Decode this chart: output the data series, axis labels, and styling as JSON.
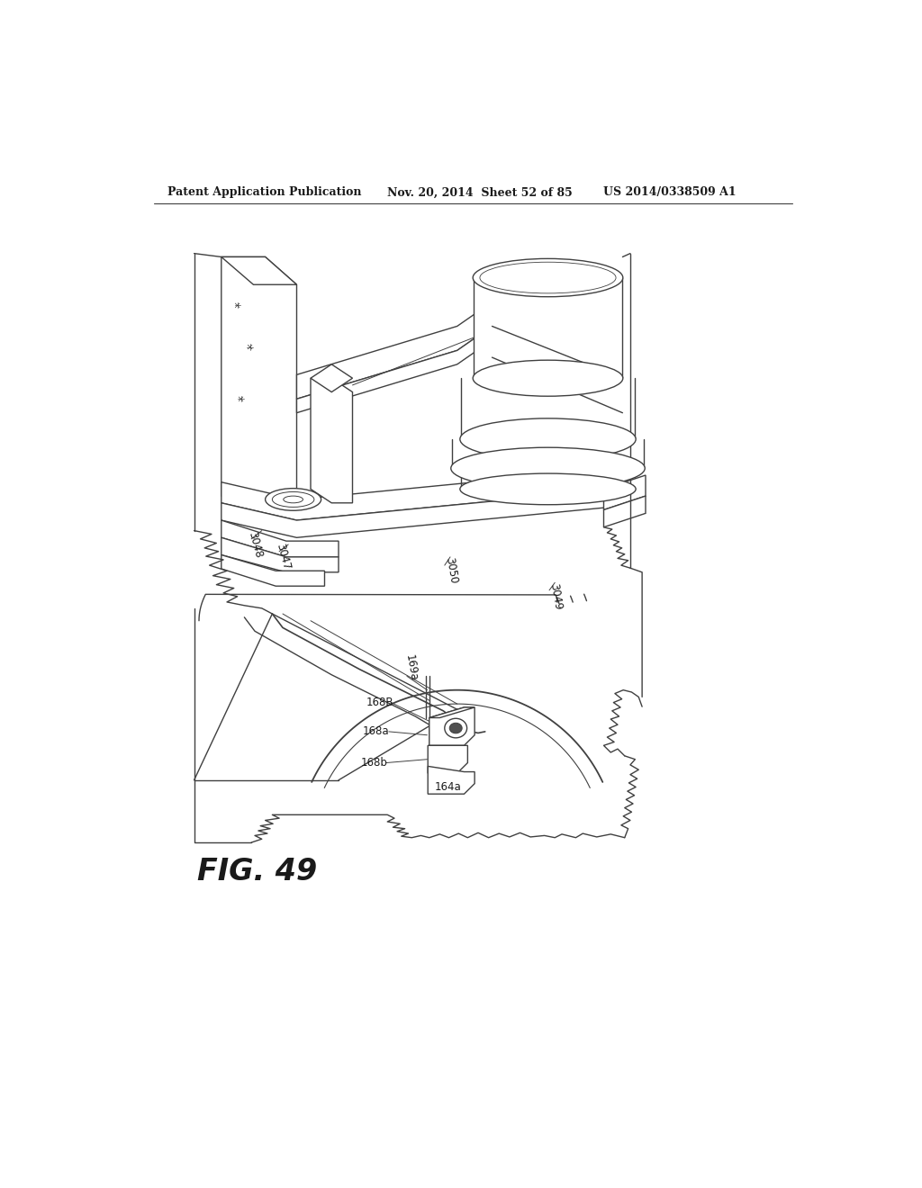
{
  "background_color": "#ffffff",
  "header_left": "Patent Application Publication",
  "header_mid": "Nov. 20, 2014  Sheet 52 of 85",
  "header_right": "US 2014/0338509 A1",
  "figure_label": "FIG. 49",
  "line_color": "#404040",
  "text_color": "#1a1a1a",
  "lw": 1.0
}
